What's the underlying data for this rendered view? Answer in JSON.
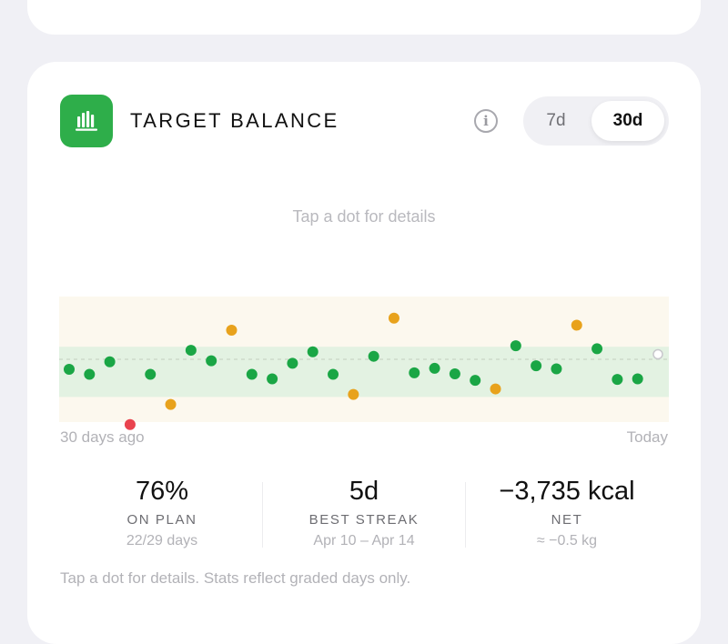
{
  "card": {
    "title": "TARGET BALANCE",
    "icon": "bar-chart-icon",
    "info_icon": "info-icon",
    "info_label": "i",
    "range_toggle": {
      "options": [
        "7d",
        "30d"
      ],
      "selected": "30d"
    }
  },
  "hint_top": "Tap a dot for details",
  "colors": {
    "on_plan": "#1aa645",
    "near": "#e8a21c",
    "off": "#e9434e",
    "band": "#e3f2e2",
    "outer_band": "#fcf8ee",
    "accent": "#2eae4a"
  },
  "chart_data": {
    "type": "scatter",
    "x_labels": {
      "start": "30 days ago",
      "end": "Today"
    },
    "points": [
      {
        "day": 1,
        "status": "on_plan",
        "y": -0.2
      },
      {
        "day": 2,
        "status": "on_plan",
        "y": -0.3
      },
      {
        "day": 3,
        "status": "on_plan",
        "y": -0.05
      },
      {
        "day": 4,
        "status": "off",
        "y": -1.3
      },
      {
        "day": 5,
        "status": "on_plan",
        "y": -0.3
      },
      {
        "day": 6,
        "status": "near",
        "y": -0.9
      },
      {
        "day": 7,
        "status": "on_plan",
        "y": 0.18
      },
      {
        "day": 8,
        "status": "on_plan",
        "y": -0.03
      },
      {
        "day": 9,
        "status": "near",
        "y": 0.58
      },
      {
        "day": 10,
        "status": "on_plan",
        "y": -0.3
      },
      {
        "day": 11,
        "status": "on_plan",
        "y": -0.39
      },
      {
        "day": 12,
        "status": "on_plan",
        "y": -0.08
      },
      {
        "day": 13,
        "status": "on_plan",
        "y": 0.15
      },
      {
        "day": 14,
        "status": "on_plan",
        "y": -0.3
      },
      {
        "day": 15,
        "status": "near",
        "y": -0.7
      },
      {
        "day": 16,
        "status": "on_plan",
        "y": 0.06
      },
      {
        "day": 17,
        "status": "near",
        "y": 0.82
      },
      {
        "day": 18,
        "status": "on_plan",
        "y": -0.27
      },
      {
        "day": 19,
        "status": "on_plan",
        "y": -0.18
      },
      {
        "day": 20,
        "status": "on_plan",
        "y": -0.29
      },
      {
        "day": 21,
        "status": "on_plan",
        "y": -0.42
      },
      {
        "day": 22,
        "status": "near",
        "y": -0.59
      },
      {
        "day": 23,
        "status": "on_plan",
        "y": 0.27
      },
      {
        "day": 24,
        "status": "on_plan",
        "y": -0.13
      },
      {
        "day": 25,
        "status": "on_plan",
        "y": -0.19
      },
      {
        "day": 26,
        "status": "near",
        "y": 0.68
      },
      {
        "day": 27,
        "status": "on_plan",
        "y": 0.21
      },
      {
        "day": 28,
        "status": "on_plan",
        "y": -0.4
      },
      {
        "day": 29,
        "status": "on_plan",
        "y": -0.39
      },
      {
        "day": 30,
        "status": "ungraded",
        "y": 0.1
      }
    ],
    "ylim": [
      -1.25,
      1.25
    ],
    "bands": {
      "on_plan": [
        -0.75,
        0.25
      ],
      "outer": [
        -1.25,
        1.25
      ]
    },
    "target_line": 0
  },
  "stats": [
    {
      "value": "76%",
      "label": "ON PLAN",
      "sub": "22/29 days"
    },
    {
      "value": "5d",
      "label": "BEST STREAK",
      "sub": "Apr 10 – Apr 14"
    },
    {
      "value": "−3,735 kcal",
      "label": "NET",
      "sub": "≈ −0.5 kg"
    }
  ],
  "footer": "Tap a dot for details. Stats reflect graded days only."
}
